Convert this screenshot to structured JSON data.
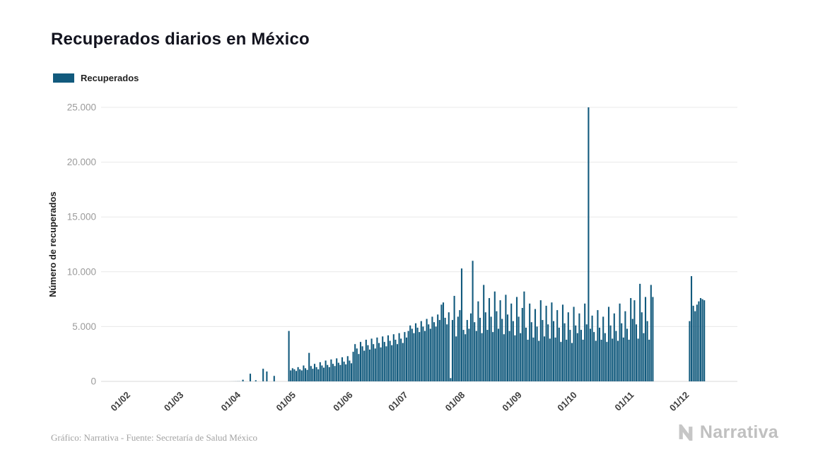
{
  "title": "Recuperados diarios en México",
  "legend": {
    "label": "Recuperados"
  },
  "footer": {
    "credit": "Gráfico: Narrativa - Fuente: Secretaría de Salud México",
    "brand": "Narrativa"
  },
  "colors": {
    "bar": "#125a7d",
    "grid": "#e8e8e8",
    "baseline": "#d9d9d9"
  },
  "chart_data": {
    "type": "bar",
    "title": "Recuperados diarios en México",
    "xlabel": "",
    "ylabel": "Número de recuperados",
    "series_name": "Recuperados",
    "ylim": [
      0,
      25000
    ],
    "yticks": [
      0,
      5000,
      10000,
      15000,
      20000,
      25000
    ],
    "ytick_labels": [
      "0",
      "5.000",
      "10.000",
      "15.000",
      "20.000",
      "25.000"
    ],
    "legend_position": "top-left",
    "grid": "horizontal",
    "months": [
      {
        "label": "01/02",
        "days": [
          0,
          0,
          0,
          0,
          0,
          0,
          0,
          0,
          0,
          0,
          0,
          0,
          0,
          0,
          0,
          0,
          0,
          0,
          0,
          0,
          0,
          0,
          0,
          0,
          0,
          0,
          0,
          0,
          0
        ]
      },
      {
        "label": "01/03",
        "days": [
          0,
          0,
          0,
          0,
          0,
          0,
          0,
          0,
          0,
          0,
          0,
          0,
          0,
          0,
          0,
          0,
          0,
          0,
          0,
          0,
          0,
          0,
          0,
          0,
          0,
          1,
          2,
          4,
          6,
          9,
          12
        ]
      },
      {
        "label": "01/04",
        "days": [
          0,
          150,
          0,
          0,
          0,
          700,
          0,
          0,
          100,
          0,
          0,
          0,
          1150,
          0,
          900,
          0,
          0,
          0,
          500,
          0,
          0,
          0,
          0,
          0,
          0,
          0,
          4600,
          1000,
          1200,
          1100
        ]
      },
      {
        "label": "01/05",
        "days": [
          950,
          1300,
          1100,
          1000,
          1450,
          1200,
          1050,
          2600,
          1400,
          1150,
          1600,
          1300,
          1100,
          1750,
          1450,
          1250,
          1900,
          1500,
          1300,
          2000,
          1600,
          1400,
          2100,
          1700,
          1500,
          2200,
          1800,
          1550,
          2300,
          1900,
          1650
        ]
      },
      {
        "label": "01/06",
        "days": [
          2700,
          3400,
          3000,
          2500,
          3600,
          3200,
          2800,
          3800,
          3300,
          2900,
          3900,
          3400,
          3000,
          4000,
          3500,
          3100,
          4100,
          3600,
          3200,
          4200,
          3700,
          3300,
          4300,
          3800,
          3400,
          4400,
          3900,
          3500,
          4500,
          4000
        ]
      },
      {
        "label": "01/07",
        "days": [
          4600,
          5100,
          4800,
          4400,
          5300,
          4900,
          4500,
          5500,
          5000,
          4600,
          5700,
          5200,
          4800,
          5900,
          5400,
          5000,
          6100,
          5600,
          7000,
          7200,
          5800,
          5200,
          6300,
          300,
          5600,
          7800,
          4100,
          5900,
          6500,
          10300,
          4700
        ]
      },
      {
        "label": "01/08",
        "days": [
          4300,
          5600,
          4800,
          6200,
          11000,
          5400,
          4600,
          7300,
          5800,
          4400,
          8800,
          6300,
          4700,
          7600,
          5900,
          4500,
          8200,
          6400,
          4800,
          7400,
          5700,
          4300,
          7900,
          6100,
          4600,
          7100,
          5500,
          4200,
          7700,
          5900,
          4400
        ]
      },
      {
        "label": "01/09",
        "days": [
          6700,
          8200,
          4900,
          3800,
          7100,
          5400,
          4000,
          6600,
          5000,
          3700,
          7400,
          5600,
          4100,
          6900,
          5200,
          3900,
          7200,
          5500,
          4000,
          6500,
          4900,
          3600,
          7000,
          5300,
          3800,
          6300,
          4700,
          3500,
          6800,
          5100
        ]
      },
      {
        "label": "01/10",
        "days": [
          4400,
          6200,
          4700,
          3800,
          7100,
          5200,
          25000,
          4800,
          6000,
          4500,
          3700,
          6500,
          4900,
          3800,
          5900,
          4400,
          3600,
          6800,
          5100,
          3900,
          6200,
          4600,
          3700,
          7100,
          5300,
          4000,
          6400,
          4800,
          3800,
          7600,
          5700
        ]
      },
      {
        "label": "01/11",
        "days": [
          7400,
          5200,
          3900,
          8900,
          6300,
          4400,
          7700,
          5500,
          3800,
          8800,
          7700,
          0,
          0,
          0,
          0,
          0,
          0,
          0,
          0,
          0,
          0,
          0,
          0,
          0,
          0,
          0,
          0,
          0,
          0,
          0
        ]
      },
      {
        "label": "01/12",
        "days": [
          5500,
          9600,
          6900,
          6400,
          7000,
          7300,
          7600,
          7500,
          7400
        ]
      }
    ]
  }
}
